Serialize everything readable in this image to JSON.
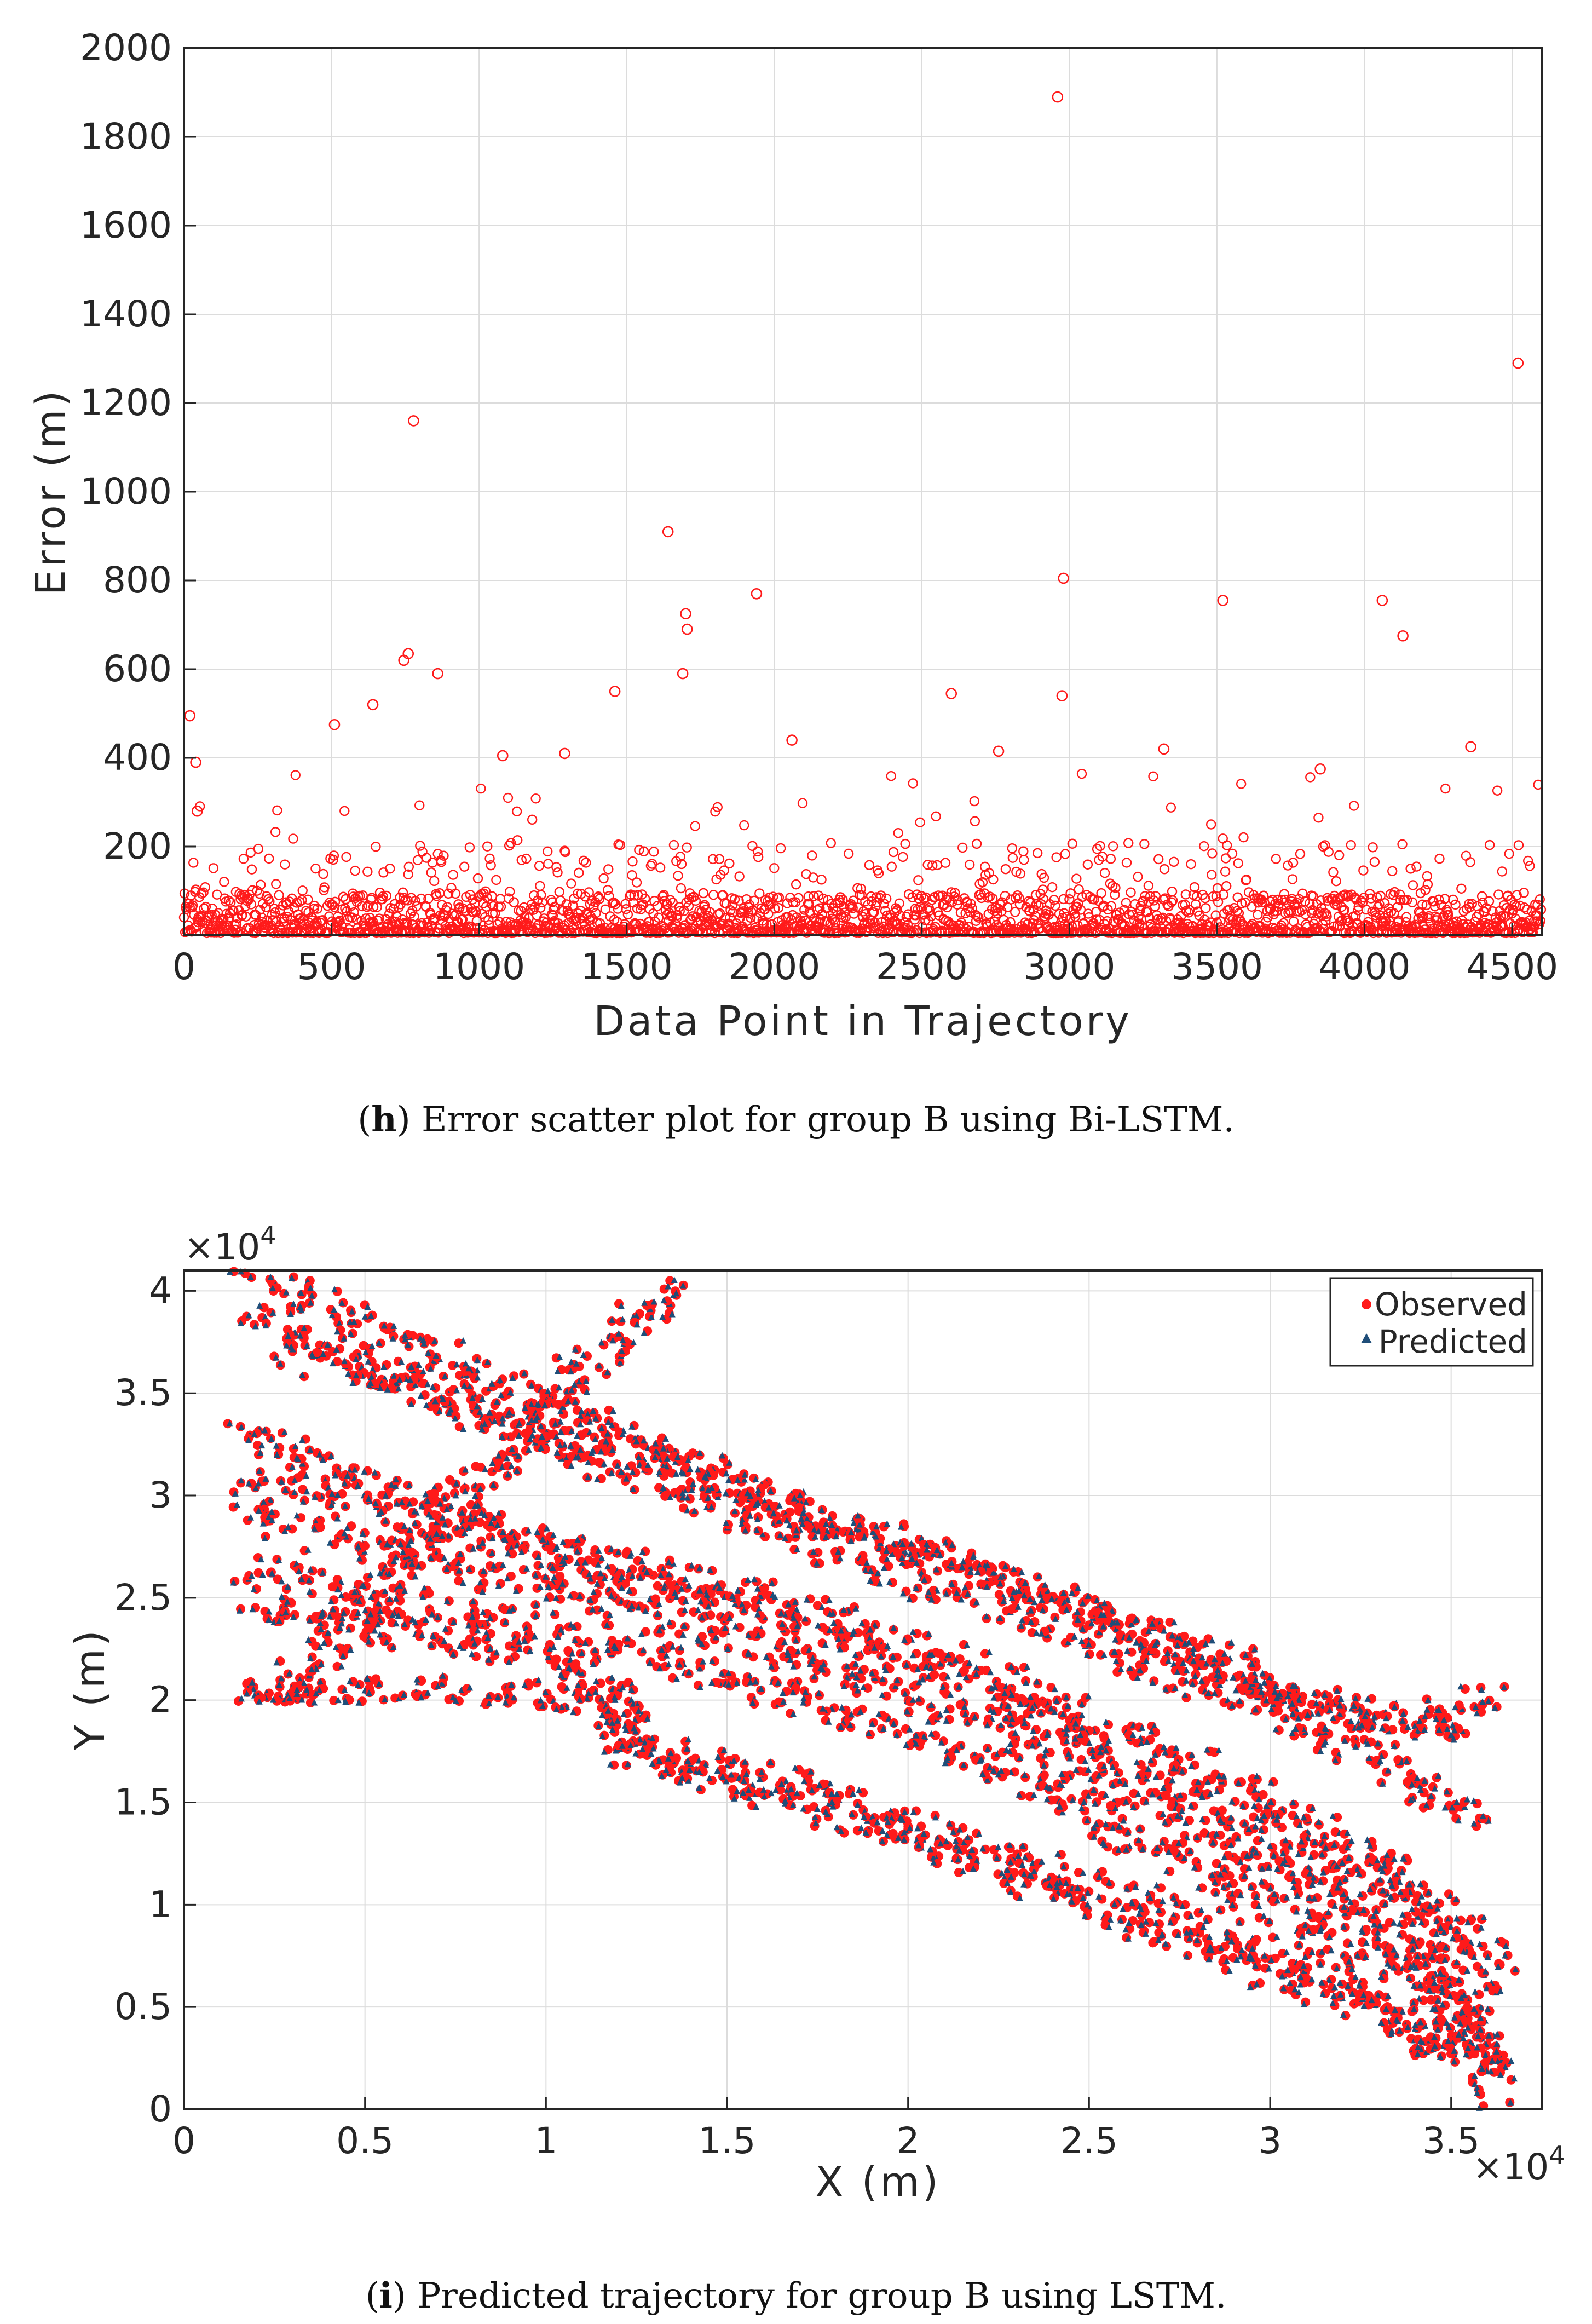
{
  "chart_data": [
    {
      "type": "scatter",
      "xlabel": "Data Point in Trajectory",
      "ylabel": "Error (m)",
      "xlim": [
        0,
        4600
      ],
      "ylim": [
        0,
        2000
      ],
      "xticks": [
        "0",
        "500",
        "1000",
        "1500",
        "2000",
        "2500",
        "3000",
        "3500",
        "4000",
        "4500"
      ],
      "yticks": [
        "200",
        "400",
        "600",
        "800",
        "1000",
        "1200",
        "1400",
        "1600",
        "1800",
        "2000"
      ],
      "grid": true,
      "marker": "open-circle",
      "color": "#ff1a1a",
      "caption_letter": "h",
      "caption_text": ") Error scatter plot for group B using Bi-LSTM.",
      "caption_open": "(",
      "outliers": {
        "x": [
          20,
          40,
          45,
          778,
          745,
          760,
          860,
          1640,
          1700,
          1705,
          1690,
          1940,
          2960,
          2980,
          2975,
          3520,
          4060,
          4130,
          4520,
          2600,
          2060,
          1460,
          510,
          640,
          1080,
          1290,
          3320,
          3850,
          4360,
          2760
        ],
        "y": [
          495,
          390,
          280,
          1160,
          620,
          635,
          590,
          910,
          725,
          690,
          590,
          770,
          1890,
          805,
          540,
          755,
          755,
          675,
          1290,
          545,
          440,
          550,
          475,
          520,
          405,
          410,
          420,
          375,
          425,
          415
        ]
      }
    },
    {
      "type": "scatter",
      "xlabel": "X (m)",
      "ylabel": "Y (m)",
      "xlim": [
        0,
        37500
      ],
      "ylim": [
        0,
        41000
      ],
      "x_exponent_base": "×10",
      "x_exponent_power": "4",
      "y_exponent_base": "×10",
      "y_exponent_power": "4",
      "xticks": [
        "0",
        "0.5",
        "1",
        "1.5",
        "2",
        "2.5",
        "3",
        "3.5"
      ],
      "yticks": [
        "0",
        "0.5",
        "1",
        "1.5",
        "2",
        "2.5",
        "3",
        "3.5",
        "4"
      ],
      "grid": true,
      "legend_position": "top-right",
      "series": [
        {
          "name": "Observed",
          "marker": "filled-circle",
          "color": "#ff1a1a"
        },
        {
          "name": "Predicted",
          "marker": "triangle",
          "color": "#1f4e79"
        }
      ],
      "trajectories": [
        {
          "x": [
            2000,
            5000,
            8000,
            12000,
            16000,
            20000,
            24000,
            28000,
            32000,
            35500
          ],
          "y": [
            40500,
            38500,
            36000,
            33000,
            30000,
            27500,
            25000,
            22500,
            19500,
            18500
          ]
        },
        {
          "x": [
            2000,
            5000,
            8000,
            12000,
            16000,
            20000,
            24000,
            28000,
            32000,
            36000
          ],
          "y": [
            39000,
            36500,
            34000,
            31000,
            28500,
            26000,
            23500,
            21000,
            18000,
            14000
          ]
        },
        {
          "x": [
            1500,
            4000,
            7000,
            10000,
            14000,
            18000,
            22000,
            26000,
            30000,
            34000,
            36500
          ],
          "y": [
            33000,
            31500,
            29500,
            28000,
            26000,
            24000,
            21500,
            18500,
            15000,
            11000,
            7000
          ]
        },
        {
          "x": [
            1800,
            4000,
            7000,
            10000,
            14000,
            18000,
            22000,
            26000,
            30000,
            34000,
            36000
          ],
          "y": [
            30800,
            30000,
            28500,
            27000,
            25000,
            23000,
            20500,
            17000,
            13500,
            9500,
            5000
          ]
        },
        {
          "x": [
            1800,
            4000,
            7000,
            10000,
            14000,
            18000,
            22000,
            26000,
            30000,
            34000,
            36200
          ],
          "y": [
            29000,
            28000,
            26500,
            25500,
            23500,
            21500,
            19000,
            15500,
            12000,
            8000,
            2000
          ]
        },
        {
          "x": [
            1800,
            4000,
            7000,
            10000,
            14000,
            18000,
            22000,
            26000,
            30000,
            34000,
            36000
          ],
          "y": [
            26500,
            25500,
            24500,
            23500,
            21500,
            19500,
            17000,
            13500,
            10000,
            6500,
            3000
          ]
        },
        {
          "x": [
            1800,
            4000,
            7000,
            10000,
            12000,
            12500,
            13000,
            16000,
            20000,
            24000,
            28000,
            32000,
            35500
          ],
          "y": [
            24800,
            24000,
            23000,
            22000,
            20500,
            17500,
            16800,
            15500,
            13500,
            10500,
            8000,
            5500,
            2500
          ]
        },
        {
          "x": [
            2000,
            5000,
            9000,
            11800,
            12500,
            14000,
            17000,
            21000,
            25000,
            29000,
            33000,
            36300
          ],
          "y": [
            20500,
            20500,
            20300,
            20000,
            17800,
            17200,
            15800,
            13500,
            11000,
            8500,
            5500,
            500
          ]
        },
        {
          "x": [
            2000,
            4000,
            6000,
            8000,
            10000,
            13500
          ],
          "y": [
            19700,
            22500,
            26500,
            30500,
            34500,
            40500
          ]
        },
        {
          "x": [
            3000,
            6000,
            10000,
            14000,
            18000,
            22000,
            26000,
            30000,
            33500,
            36200
          ],
          "y": [
            37000,
            35500,
            33500,
            31000,
            28500,
            26500,
            23500,
            20500,
            18500,
            20300
          ]
        }
      ],
      "caption_letter": "i",
      "caption_text": ") Predicted trajectory for group B using LSTM.",
      "caption_open": "("
    }
  ]
}
